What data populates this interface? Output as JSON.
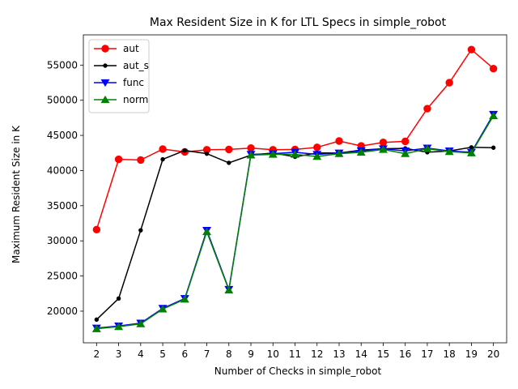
{
  "chart_data": {
    "type": "line",
    "title": "Max Resident Size in K for LTL Specs in simple_robot",
    "xlabel": "Number of Checks in simple_robot",
    "ylabel": "Maximum Resident Size in K",
    "x": [
      2,
      3,
      4,
      5,
      6,
      7,
      8,
      9,
      10,
      11,
      12,
      13,
      14,
      15,
      16,
      17,
      18,
      19,
      20
    ],
    "xlim": [
      1.4,
      20.6
    ],
    "ylim": [
      15500,
      59300
    ],
    "yticks": [
      20000,
      25000,
      30000,
      35000,
      40000,
      45000,
      50000,
      55000
    ],
    "grid": false,
    "legend_position": "top-left",
    "series": [
      {
        "name": "aut",
        "color": "#ff0000",
        "marker": "circle",
        "values": [
          31600,
          41600,
          41500,
          43050,
          42650,
          42950,
          43000,
          43200,
          42950,
          43000,
          43300,
          44200,
          43500,
          44000,
          44150,
          48800,
          52500,
          57200,
          54500
        ]
      },
      {
        "name": "aut_s",
        "color": "#000000",
        "marker": "dot",
        "values": [
          18800,
          21800,
          31500,
          41600,
          42850,
          42400,
          41100,
          42200,
          42500,
          41950,
          42500,
          42500,
          42900,
          43100,
          43150,
          42600,
          42800,
          43300,
          43250
        ]
      },
      {
        "name": "func",
        "color": "#0000ff",
        "marker": "triangle-down",
        "values": [
          17600,
          17900,
          18300,
          20400,
          21800,
          31500,
          23100,
          42300,
          42400,
          42600,
          42300,
          42500,
          42800,
          43100,
          42800,
          43200,
          42800,
          42600,
          48000
        ]
      },
      {
        "name": "norm",
        "color": "#008000",
        "marker": "triangle-up",
        "values": [
          17500,
          17800,
          18200,
          20300,
          21700,
          31300,
          23000,
          42200,
          42300,
          42300,
          42000,
          42400,
          42600,
          43000,
          42400,
          43100,
          42700,
          42500,
          47800
        ]
      }
    ]
  }
}
